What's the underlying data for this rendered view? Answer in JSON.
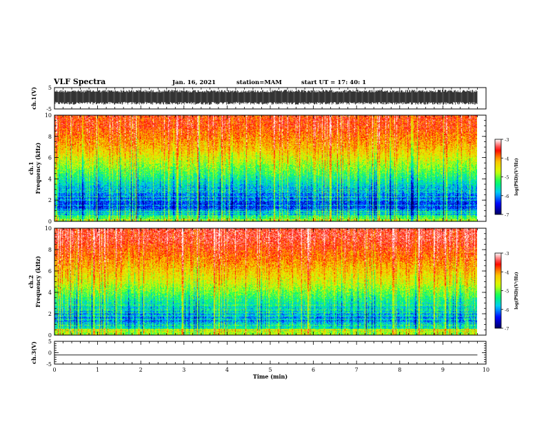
{
  "header": {
    "title": "VLF Spectra",
    "date": "Jan. 16, 2021",
    "station": "station=MAM",
    "start": "start  UT  =   17: 40: 1"
  },
  "colors": {
    "colormap": [
      "#000060",
      "#0000ff",
      "#00c8ff",
      "#00ff60",
      "#d8ff00",
      "#ffc000",
      "#ff0000",
      "#ffffff"
    ]
  },
  "chart_data": [
    {
      "type": "line",
      "name": "ch1-waveform",
      "ylabel": "ch.1(V)",
      "x": [
        0,
        9.8
      ],
      "y_band": [
        -3.0,
        4.0
      ],
      "ylim": [
        -5,
        5
      ],
      "yticks": [
        "5",
        "-5"
      ]
    },
    {
      "type": "heatmap",
      "name": "ch1-spectrogram",
      "ylabel": "ch.1\nFrequency (kHz)",
      "xlim": [
        0,
        10
      ],
      "ylim": [
        0,
        10
      ],
      "yticks": [
        "0",
        "2",
        "4",
        "6",
        "8",
        "10"
      ],
      "data_xrange": [
        0,
        9.8
      ],
      "colorbar": {
        "label": "log(PSD)(V²/Hz)",
        "ticks": [
          "-3",
          "-4",
          "-5",
          "-6",
          "-7"
        ],
        "range": [
          -7,
          -3
        ]
      },
      "band_levels": [
        {
          "freq_from": 0,
          "freq_to": 0.5,
          "level": -5.5
        },
        {
          "freq_from": 0.5,
          "freq_to": 2.5,
          "level": -6.4
        },
        {
          "freq_from": 2.5,
          "freq_to": 4,
          "level": -5.8
        },
        {
          "freq_from": 4,
          "freq_to": 6,
          "level": -5.0
        },
        {
          "freq_from": 6,
          "freq_to": 8,
          "level": -4.2
        },
        {
          "freq_from": 8,
          "freq_to": 10,
          "level": -3.7
        }
      ]
    },
    {
      "type": "heatmap",
      "name": "ch2-spectrogram",
      "ylabel": "ch.2\nFrequency (kHz)",
      "xlim": [
        0,
        10
      ],
      "ylim": [
        0,
        10
      ],
      "yticks": [
        "0",
        "2",
        "4",
        "6",
        "8",
        "10"
      ],
      "data_xrange": [
        0,
        9.8
      ],
      "colorbar": {
        "label": "log(PSD)(V²/Hz)",
        "ticks": [
          "-3",
          "-4",
          "-5",
          "-6",
          "-7"
        ],
        "range": [
          -7,
          -3
        ]
      },
      "band_levels": [
        {
          "freq_from": 0,
          "freq_to": 0.5,
          "level": -5.2
        },
        {
          "freq_from": 0.5,
          "freq_to": 2.5,
          "level": -6.1
        },
        {
          "freq_from": 2.5,
          "freq_to": 4,
          "level": -5.4
        },
        {
          "freq_from": 4,
          "freq_to": 6,
          "level": -4.6
        },
        {
          "freq_from": 6,
          "freq_to": 8,
          "level": -4.0
        },
        {
          "freq_from": 8,
          "freq_to": 10,
          "level": -3.5
        }
      ]
    },
    {
      "type": "line",
      "name": "ch3-waveform",
      "ylabel": "ch.3(V)",
      "x": [
        0,
        9.8
      ],
      "y": [
        -1.0,
        -1.0
      ],
      "ylim": [
        -5,
        5
      ],
      "yticks": [
        "5",
        "0",
        "-5"
      ]
    }
  ],
  "xaxis": {
    "label": "Time (min)",
    "ticks": [
      "0",
      "1",
      "2",
      "3",
      "4",
      "5",
      "6",
      "7",
      "8",
      "9",
      "10"
    ],
    "range": [
      0,
      10
    ]
  }
}
